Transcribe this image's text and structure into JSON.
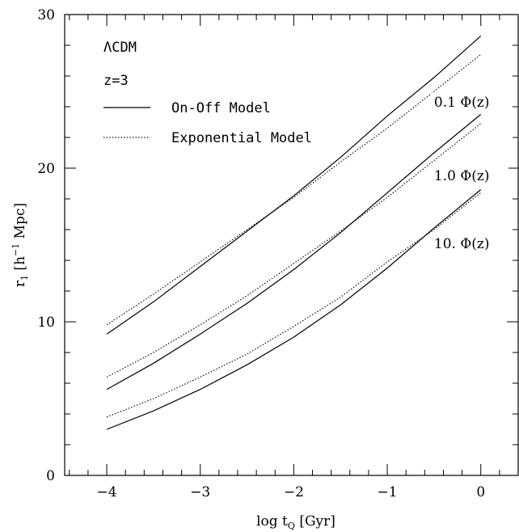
{
  "chart_data": {
    "type": "line",
    "xlabel_main": "log t",
    "xlabel_sub": "Q",
    "xlabel_unit": "[Gyr]",
    "ylabel_main": "r",
    "ylabel_sub": "1",
    "ylabel_unit_pre": "[h",
    "ylabel_unit_sup": "−1",
    "ylabel_unit_post": " Mpc]",
    "xlim": [
      -4.45,
      0.4
    ],
    "ylim": [
      0,
      30
    ],
    "x_ticks_major": [
      -4,
      -3,
      -2,
      -1,
      0
    ],
    "x_tick_labels": [
      "−4",
      "−3",
      "−2",
      "−1",
      "0"
    ],
    "x_ticks_minor_step": 0.2,
    "y_ticks_major": [
      0,
      10,
      20,
      30
    ],
    "y_tick_labels": [
      "0",
      "10",
      "20",
      "30"
    ],
    "y_ticks_minor_step": 2,
    "text_lines": [
      "ΛCDM",
      "z=3"
    ],
    "legend": [
      {
        "label": "On-Off Model",
        "style": "solid"
      },
      {
        "label": "Exponential Model",
        "style": "dotted"
      }
    ],
    "x": [
      -4,
      -3.5,
      -3,
      -2.5,
      -2,
      -1.5,
      -1,
      -0.5,
      0
    ],
    "series": [
      {
        "group": "0.1 Φ(z)",
        "model": "On-Off Model",
        "style": "solid",
        "values": [
          9.2,
          11.3,
          13.6,
          15.9,
          18.2,
          20.7,
          23.4,
          25.9,
          28.6
        ]
      },
      {
        "group": "0.1 Φ(z)",
        "model": "Exponential Model",
        "style": "dotted",
        "values": [
          9.8,
          11.8,
          13.9,
          16.0,
          18.1,
          20.4,
          22.6,
          25.0,
          27.4
        ]
      },
      {
        "group": "1.0 Φ(z)",
        "model": "On-Off Model",
        "style": "solid",
        "values": [
          5.6,
          7.3,
          9.2,
          11.2,
          13.4,
          15.8,
          18.4,
          21.0,
          23.5
        ]
      },
      {
        "group": "1.0 Φ(z)",
        "model": "Exponential Model",
        "style": "dotted",
        "values": [
          6.4,
          8.0,
          9.8,
          11.7,
          13.8,
          15.9,
          18.1,
          20.5,
          22.9
        ]
      },
      {
        "group": "10. Φ(z)",
        "model": "On-Off Model",
        "style": "solid",
        "values": [
          3.0,
          4.2,
          5.6,
          7.2,
          9.0,
          11.1,
          13.5,
          16.1,
          18.6
        ]
      },
      {
        "group": "10. Φ(z)",
        "model": "Exponential Model",
        "style": "dotted",
        "values": [
          3.8,
          5.0,
          6.4,
          7.9,
          9.7,
          11.6,
          13.9,
          16.0,
          18.4
        ]
      }
    ],
    "annotations": [
      {
        "text": "0.1 Φ(z)",
        "x": -0.5,
        "y": 24.0
      },
      {
        "text": "1.0 Φ(z)",
        "x": -0.5,
        "y": 19.2
      },
      {
        "text": "10. Φ(z)",
        "x": -0.5,
        "y": 14.8
      }
    ]
  }
}
